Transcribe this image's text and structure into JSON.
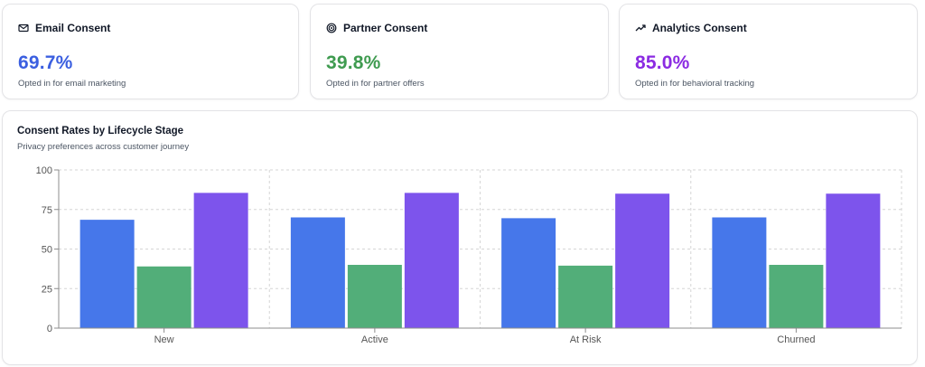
{
  "kpis": [
    {
      "title": "Email Consent",
      "icon": "mail-icon",
      "value": "69.7%",
      "subtitle": "Opted in for email marketing",
      "color": "#3b5fe0"
    },
    {
      "title": "Partner Consent",
      "icon": "target-icon",
      "value": "39.8%",
      "subtitle": "Opted in for partner offers",
      "color": "#3f9b50"
    },
    {
      "title": "Analytics Consent",
      "icon": "trending-up-icon",
      "value": "85.0%",
      "subtitle": "Opted in for behavioral tracking",
      "color": "#8b2be2"
    }
  ],
  "chart": {
    "title": "Consent Rates by Lifecycle Stage",
    "subtitle": "Privacy preferences across customer journey"
  },
  "chart_data": {
    "type": "bar",
    "categories": [
      "New",
      "Active",
      "At Risk",
      "Churned"
    ],
    "series": [
      {
        "values": [
          68.5,
          70.0,
          69.5,
          70.0
        ],
        "color": "#4677ea"
      },
      {
        "values": [
          39.0,
          40.0,
          39.5,
          40.0
        ],
        "color": "#52ae79"
      },
      {
        "values": [
          85.5,
          85.5,
          85.0,
          85.0
        ],
        "color": "#7d54ec"
      }
    ],
    "ylim": [
      0,
      100
    ],
    "yticks": [
      0,
      25,
      50,
      75,
      100
    ],
    "grid": true
  }
}
